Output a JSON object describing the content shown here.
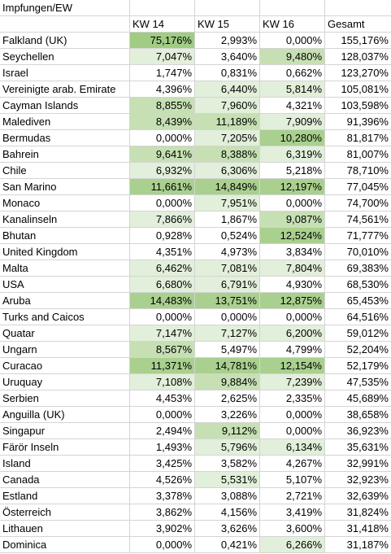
{
  "sheet": {
    "title": "Impfungen/EW",
    "headers": [
      "",
      "KW 14",
      "KW 15",
      "KW 16",
      "Gesamt"
    ],
    "rows": [
      {
        "name": "Falkland (UK)",
        "kw14": "75,176%",
        "kw15": "2,993%",
        "kw16": "0,000%",
        "total": "155,176%",
        "level": [
          4,
          0,
          0,
          0
        ]
      },
      {
        "name": "Seychellen",
        "kw14": "7,047%",
        "kw15": "3,640%",
        "kw16": "9,480%",
        "total": "128,037%",
        "level": [
          1,
          0,
          2,
          0
        ]
      },
      {
        "name": "Israel",
        "kw14": "1,747%",
        "kw15": "0,831%",
        "kw16": "0,662%",
        "total": "123,270%",
        "level": [
          0,
          0,
          0,
          0
        ]
      },
      {
        "name": "Vereinigte arab. Emirate",
        "kw14": "4,396%",
        "kw15": "6,440%",
        "kw16": "5,814%",
        "total": "105,081%",
        "level": [
          0,
          1,
          1,
          0
        ]
      },
      {
        "name": "Cayman Islands",
        "kw14": "8,855%",
        "kw15": "7,960%",
        "kw16": "4,321%",
        "total": "103,598%",
        "level": [
          2,
          1,
          0,
          0
        ]
      },
      {
        "name": "Malediven",
        "kw14": "8,439%",
        "kw15": "11,189%",
        "kw16": "7,909%",
        "total": "91,396%",
        "level": [
          2,
          2,
          1,
          0
        ]
      },
      {
        "name": "Bermudas",
        "kw14": "0,000%",
        "kw15": "7,205%",
        "kw16": "10,280%",
        "total": "81,817%",
        "level": [
          0,
          1,
          3,
          0
        ]
      },
      {
        "name": "Bahrein",
        "kw14": "9,641%",
        "kw15": "8,388%",
        "kw16": "6,319%",
        "total": "81,007%",
        "level": [
          2,
          2,
          1,
          0
        ]
      },
      {
        "name": "Chile",
        "kw14": "6,932%",
        "kw15": "6,306%",
        "kw16": "5,218%",
        "total": "78,710%",
        "level": [
          1,
          1,
          0,
          0
        ]
      },
      {
        "name": "San Marino",
        "kw14": "11,661%",
        "kw15": "14,849%",
        "kw16": "12,197%",
        "total": "77,045%",
        "level": [
          3,
          3,
          3,
          0
        ]
      },
      {
        "name": "Monaco",
        "kw14": "0,000%",
        "kw15": "7,951%",
        "kw16": "0,000%",
        "total": "74,700%",
        "level": [
          0,
          1,
          0,
          0
        ]
      },
      {
        "name": "Kanalinseln",
        "kw14": "7,866%",
        "kw15": "1,867%",
        "kw16": "9,087%",
        "total": "74,561%",
        "level": [
          1,
          0,
          2,
          0
        ]
      },
      {
        "name": "Bhutan",
        "kw14": "0,928%",
        "kw15": "0,524%",
        "kw16": "12,524%",
        "total": "71,777%",
        "level": [
          0,
          0,
          3,
          0
        ]
      },
      {
        "name": "United Kingdom",
        "kw14": "4,351%",
        "kw15": "4,973%",
        "kw16": "3,834%",
        "total": "70,010%",
        "level": [
          0,
          0,
          0,
          0
        ]
      },
      {
        "name": "Malta",
        "kw14": "6,462%",
        "kw15": "7,081%",
        "kw16": "7,804%",
        "total": "69,383%",
        "level": [
          1,
          1,
          1,
          0
        ]
      },
      {
        "name": "USA",
        "kw14": "6,680%",
        "kw15": "6,791%",
        "kw16": "4,930%",
        "total": "68,530%",
        "level": [
          1,
          1,
          0,
          0
        ]
      },
      {
        "name": "Aruba",
        "kw14": "14,483%",
        "kw15": "13,751%",
        "kw16": "12,875%",
        "total": "65,453%",
        "level": [
          3,
          3,
          3,
          0
        ]
      },
      {
        "name": "Turks and Caicos",
        "kw14": "0,000%",
        "kw15": "0,000%",
        "kw16": "0,000%",
        "total": "64,516%",
        "level": [
          0,
          0,
          0,
          0
        ]
      },
      {
        "name": "Quatar",
        "kw14": "7,147%",
        "kw15": "7,127%",
        "kw16": "6,200%",
        "total": "59,012%",
        "level": [
          1,
          1,
          1,
          0
        ]
      },
      {
        "name": "Ungarn",
        "kw14": "8,567%",
        "kw15": "5,497%",
        "kw16": "4,799%",
        "total": "52,204%",
        "level": [
          2,
          0,
          0,
          0
        ]
      },
      {
        "name": "Curacao",
        "kw14": "11,371%",
        "kw15": "14,781%",
        "kw16": "12,154%",
        "total": "52,179%",
        "level": [
          3,
          3,
          3,
          0
        ]
      },
      {
        "name": "Uruquay",
        "kw14": "7,108%",
        "kw15": "9,884%",
        "kw16": "7,239%",
        "total": "47,535%",
        "level": [
          1,
          2,
          1,
          0
        ]
      },
      {
        "name": "Serbien",
        "kw14": "4,453%",
        "kw15": "2,625%",
        "kw16": "2,335%",
        "total": "45,689%",
        "level": [
          0,
          0,
          0,
          0
        ]
      },
      {
        "name": "Anguilla (UK)",
        "kw14": "0,000%",
        "kw15": "3,226%",
        "kw16": "0,000%",
        "total": "38,658%",
        "level": [
          0,
          0,
          0,
          0
        ]
      },
      {
        "name": "Singapur",
        "kw14": "2,494%",
        "kw15": "9,112%",
        "kw16": "0,000%",
        "total": "36,923%",
        "level": [
          0,
          2,
          0,
          0
        ]
      },
      {
        "name": "Färör Inseln",
        "kw14": "1,493%",
        "kw15": "5,796%",
        "kw16": "6,134%",
        "total": "35,631%",
        "level": [
          0,
          1,
          1,
          0
        ]
      },
      {
        "name": "Island",
        "kw14": "3,425%",
        "kw15": "3,582%",
        "kw16": "4,267%",
        "total": "32,991%",
        "level": [
          0,
          0,
          0,
          0
        ]
      },
      {
        "name": "Canada",
        "kw14": "4,526%",
        "kw15": "5,531%",
        "kw16": "5,107%",
        "total": "32,923%",
        "level": [
          0,
          1,
          0,
          0
        ]
      },
      {
        "name": "Estland",
        "kw14": "3,378%",
        "kw15": "3,088%",
        "kw16": "2,721%",
        "total": "32,639%",
        "level": [
          0,
          0,
          0,
          0
        ]
      },
      {
        "name": "Österreich",
        "kw14": "3,862%",
        "kw15": "4,156%",
        "kw16": "3,419%",
        "total": "31,824%",
        "level": [
          0,
          0,
          0,
          0
        ]
      },
      {
        "name": "Lithauen",
        "kw14": "3,902%",
        "kw15": "3,626%",
        "kw16": "3,600%",
        "total": "31,418%",
        "level": [
          0,
          0,
          0,
          0
        ]
      },
      {
        "name": "Dominica",
        "kw14": "0,000%",
        "kw15": "0,421%",
        "kw16": "6,266%",
        "total": "31,187%",
        "level": [
          0,
          0,
          1,
          0
        ]
      }
    ]
  },
  "colors": {
    "level0": "#ffffff",
    "level1": "#e2efda",
    "level2": "#c6e0b4",
    "level3": "#a9d08e",
    "level4": "#a0cc84",
    "gridline": "#d4d4d4"
  }
}
